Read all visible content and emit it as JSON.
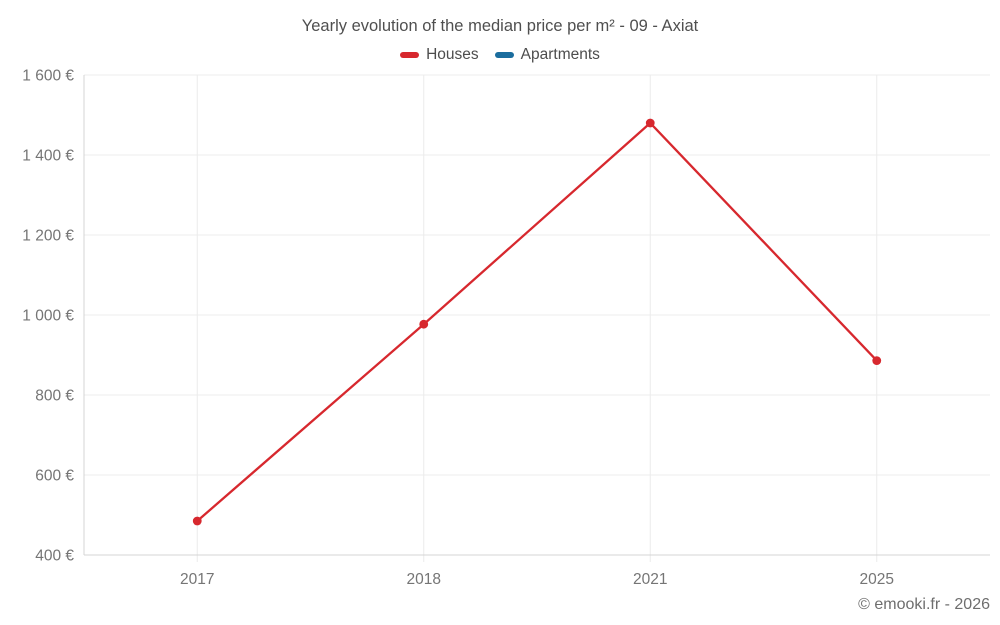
{
  "title": "Yearly evolution of the median price per m² - 09 - Axiat",
  "legend": {
    "items": [
      {
        "label": "Houses",
        "color": "#d7282e"
      },
      {
        "label": "Apartments",
        "color": "#1b6d9e"
      }
    ]
  },
  "footer": {
    "copyright": "© emooki.fr - 2026"
  },
  "colors": {
    "background": "#ffffff",
    "grid": "#ececec",
    "axis": "#d4d4d4",
    "tick_label": "#757575",
    "title_text": "#4f4f4f",
    "copyright_text": "#6e6e6e"
  },
  "chart_data": {
    "type": "line",
    "title": "Yearly evolution of the median price per m² - 09 - Axiat",
    "categories": [
      "2017",
      "2018",
      "2021",
      "2025"
    ],
    "series": [
      {
        "name": "Houses",
        "color": "#d7282e",
        "values": [
          485,
          977,
          1480,
          886
        ]
      },
      {
        "name": "Apartments",
        "color": "#1b6d9e",
        "values": []
      }
    ],
    "xlabel": "",
    "ylabel": "",
    "ytick_format": "{value} €",
    "ylim": [
      400,
      1600
    ],
    "ytick_step": 200,
    "grid": true,
    "legend_position": "top"
  }
}
